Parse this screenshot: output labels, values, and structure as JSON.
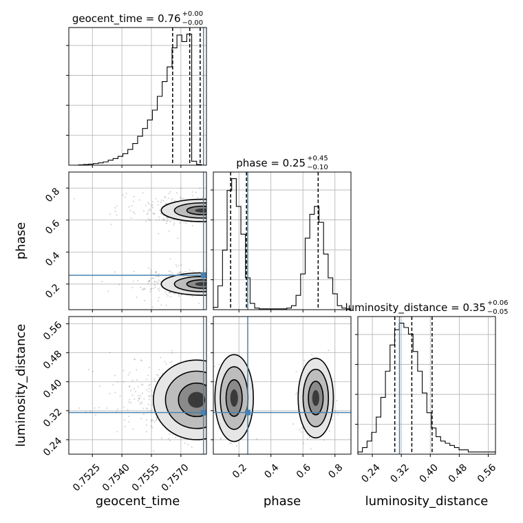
{
  "chart_data": {
    "type": "corner",
    "parameters": [
      {
        "name": "geocent_time",
        "axis_label": "geocent_time",
        "title": {
          "prefix": "geocent_time = ",
          "value": "0.76",
          "upper": "+0.00",
          "lower": "−0.00"
        },
        "range": [
          0.7513,
          0.7583
        ],
        "ticks": [
          0.7525,
          0.754,
          0.7555,
          0.757
        ],
        "tick_labels": [
          "0.7525",
          "0.7540",
          "0.7555",
          "0.7570"
        ],
        "truth": 0.75815,
        "quantiles": [
          0.75658,
          0.75745,
          0.75798
        ],
        "histogram": {
          "edges_start": 0.7513,
          "bin_width": 0.00025,
          "counts": [
            0,
            0,
            0.01,
            0.02,
            0.03,
            0.05,
            0.07,
            0.1,
            0.15,
            0.2,
            0.27,
            0.35,
            0.48,
            0.66,
            0.88,
            1.12,
            1.38,
            1.68,
            2.1,
            2.55,
            3.0,
            3.58,
            3.97,
            3.77,
            4.0,
            0.12,
            0.02,
            0.0
          ]
        }
      },
      {
        "name": "phase",
        "axis_label": "phase",
        "title": {
          "prefix": "phase = ",
          "value": "0.25",
          "upper": "+0.45",
          "lower": "−0.10"
        },
        "range": [
          0.04,
          0.9
        ],
        "ticks": [
          0.2,
          0.4,
          0.6,
          0.8
        ],
        "tick_labels": [
          "0.2",
          "0.4",
          "0.6",
          "0.8"
        ],
        "truth": 0.255,
        "quantiles": [
          0.148,
          0.247,
          0.695
        ],
        "histogram": {
          "edges_start": 0.04,
          "bin_width": 0.0287,
          "counts": [
            0.03,
            0.3,
            0.75,
            1.5,
            1.65,
            1.3,
            0.95,
            0.4,
            0.08,
            0.02,
            0.01,
            0.01,
            0.01,
            0.01,
            0.01,
            0.01,
            0.02,
            0.05,
            0.18,
            0.45,
            0.9,
            1.2,
            1.3,
            1.1,
            0.7,
            0.4,
            0.2,
            0.05,
            0.02,
            0.01
          ]
        }
      },
      {
        "name": "luminosity_distance",
        "axis_label": "luminosity_distance",
        "title": {
          "prefix": "luminosity_distance = ",
          "value": "0.35",
          "upper": "+0.06",
          "lower": "−0.05"
        },
        "range": [
          0.2,
          0.58
        ],
        "ticks": [
          0.24,
          0.32,
          0.4,
          0.48,
          0.56
        ],
        "tick_labels": [
          "0.24",
          "0.32",
          "0.40",
          "0.48",
          "0.56"
        ],
        "truth": 0.315,
        "quantiles": [
          0.302,
          0.349,
          0.405
        ],
        "histogram": {
          "edges_start": 0.2,
          "bin_width": 0.0127,
          "counts": [
            0.01,
            0.03,
            0.06,
            0.1,
            0.17,
            0.26,
            0.38,
            0.5,
            0.57,
            0.6,
            0.58,
            0.55,
            0.47,
            0.38,
            0.28,
            0.19,
            0.12,
            0.08,
            0.06,
            0.05,
            0.04,
            0.03,
            0.02,
            0.02,
            0.01,
            0.01,
            0.01,
            0.01,
            0.01,
            0.01
          ]
        }
      }
    ],
    "truth_color": "#4682b4",
    "contour_color": "#000000",
    "grid": true
  }
}
